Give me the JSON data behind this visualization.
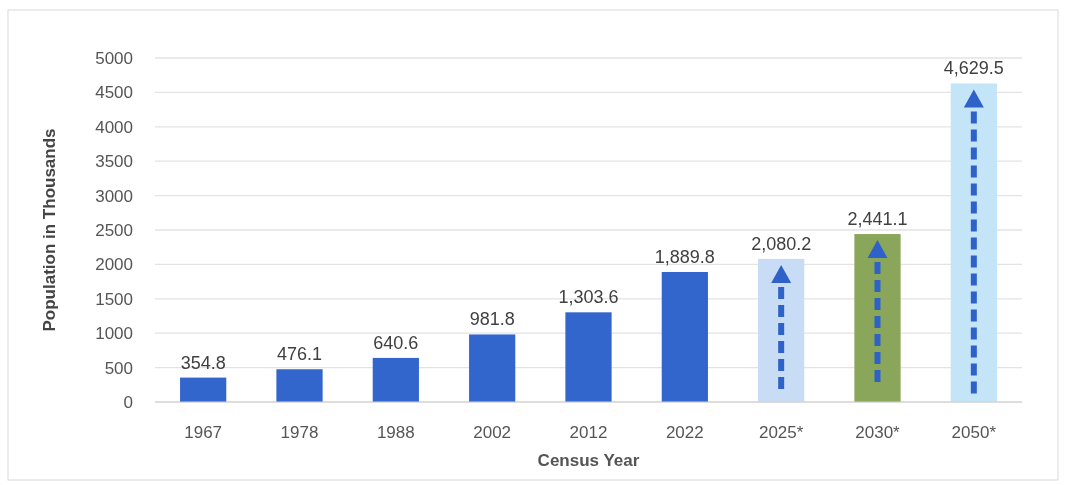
{
  "chart_data": {
    "type": "bar",
    "xlabel": "Census Year",
    "ylabel": "Population in Thousands",
    "categories": [
      "1967",
      "1978",
      "1988",
      "2002",
      "2012",
      "2022",
      "2025*",
      "2030*",
      "2050*"
    ],
    "values": [
      354.8,
      476.1,
      640.6,
      981.8,
      1303.6,
      1889.8,
      2080.2,
      2441.1,
      4629.5
    ],
    "value_labels": [
      "354.8",
      "476.1",
      "640.6",
      "981.8",
      "1,303.6",
      "1,889.8",
      "2,080.2",
      "2,441.1",
      "4,629.5"
    ],
    "colors": [
      "#3366cc",
      "#3366cc",
      "#3366cc",
      "#3366cc",
      "#3366cc",
      "#3366cc",
      "#c9dcf5",
      "#8aa65a",
      "#c4e4f8"
    ],
    "ylim": [
      0,
      5000
    ],
    "yticks": [
      0,
      500,
      1000,
      1500,
      2000,
      2500,
      3000,
      3500,
      4000,
      4500,
      5000
    ],
    "grid": "y"
  }
}
